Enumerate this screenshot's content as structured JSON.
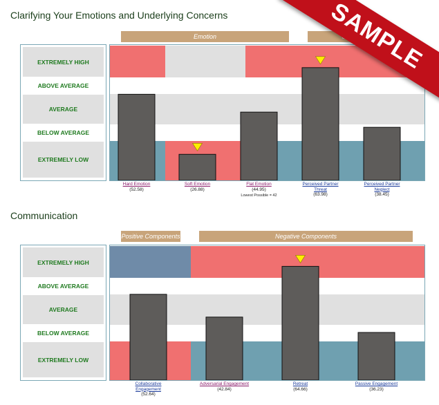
{
  "watermark": "SAMPLE",
  "levels": [
    "EXTREMELY HIGH",
    "ABOVE AVERAGE",
    "AVERAGE",
    "BELOW AVERAGE",
    "EXTREMELY LOW"
  ],
  "colors": {
    "high": "#f07070",
    "low": "#6fa0b0",
    "lowAlt": "#6f8ba8",
    "mid": "#e0e0e0",
    "bar": "#5e5c5a",
    "marker": "#ffee00",
    "label": "#1f7a1f"
  },
  "section1": {
    "title": "Clarifying Your Emotions and Underlying Concerns",
    "groups": [
      "Emotion",
      "Unde"
    ],
    "bars": [
      {
        "name": "Hard Emotion",
        "score": "(52.58)",
        "note": ""
      },
      {
        "name": "Soft Emotion",
        "score": "(26.88)",
        "note": ""
      },
      {
        "name": "Flat Emotion",
        "score": "(44.95)",
        "note": "Lowest Possible = 42"
      },
      {
        "name": "Perceived Partner Threat",
        "score": "(63.98)",
        "note": ""
      },
      {
        "name": "Perceived Partner Neglect",
        "score": "(38.45)",
        "note": ""
      }
    ]
  },
  "section2": {
    "title": "Communication",
    "groups": [
      "Positive Components",
      "Negative Components"
    ],
    "bars": [
      {
        "name": "Collaborative Engagement",
        "score": "(52.64)"
      },
      {
        "name": "Adversarial Engagement",
        "score": "(42.84)"
      },
      {
        "name": "Retreat",
        "score": "(64.66)"
      },
      {
        "name": "Passive Engagement",
        "score": "(36.23)"
      }
    ]
  },
  "chart_data": [
    {
      "type": "bar",
      "title": "Clarifying Your Emotions and Underlying Concerns",
      "categories": [
        "Hard Emotion",
        "Soft Emotion",
        "Flat Emotion",
        "Perceived Partner Threat",
        "Perceived Partner Neglect"
      ],
      "values": [
        52.58,
        26.88,
        44.95,
        63.98,
        38.45
      ],
      "markers": [
        "Soft Emotion",
        "Perceived Partner Threat"
      ],
      "levels": [
        "EXTREMELY HIGH",
        "ABOVE AVERAGE",
        "AVERAGE",
        "BELOW AVERAGE",
        "EXTREMELY LOW"
      ]
    },
    {
      "type": "bar",
      "title": "Communication",
      "categories": [
        "Collaborative Engagement",
        "Adversarial Engagement",
        "Retreat",
        "Passive Engagement"
      ],
      "values": [
        52.64,
        42.84,
        64.66,
        36.23
      ],
      "markers": [
        "Retreat"
      ],
      "levels": [
        "EXTREMELY HIGH",
        "ABOVE AVERAGE",
        "AVERAGE",
        "BELOW AVERAGE",
        "EXTREMELY LOW"
      ]
    }
  ]
}
